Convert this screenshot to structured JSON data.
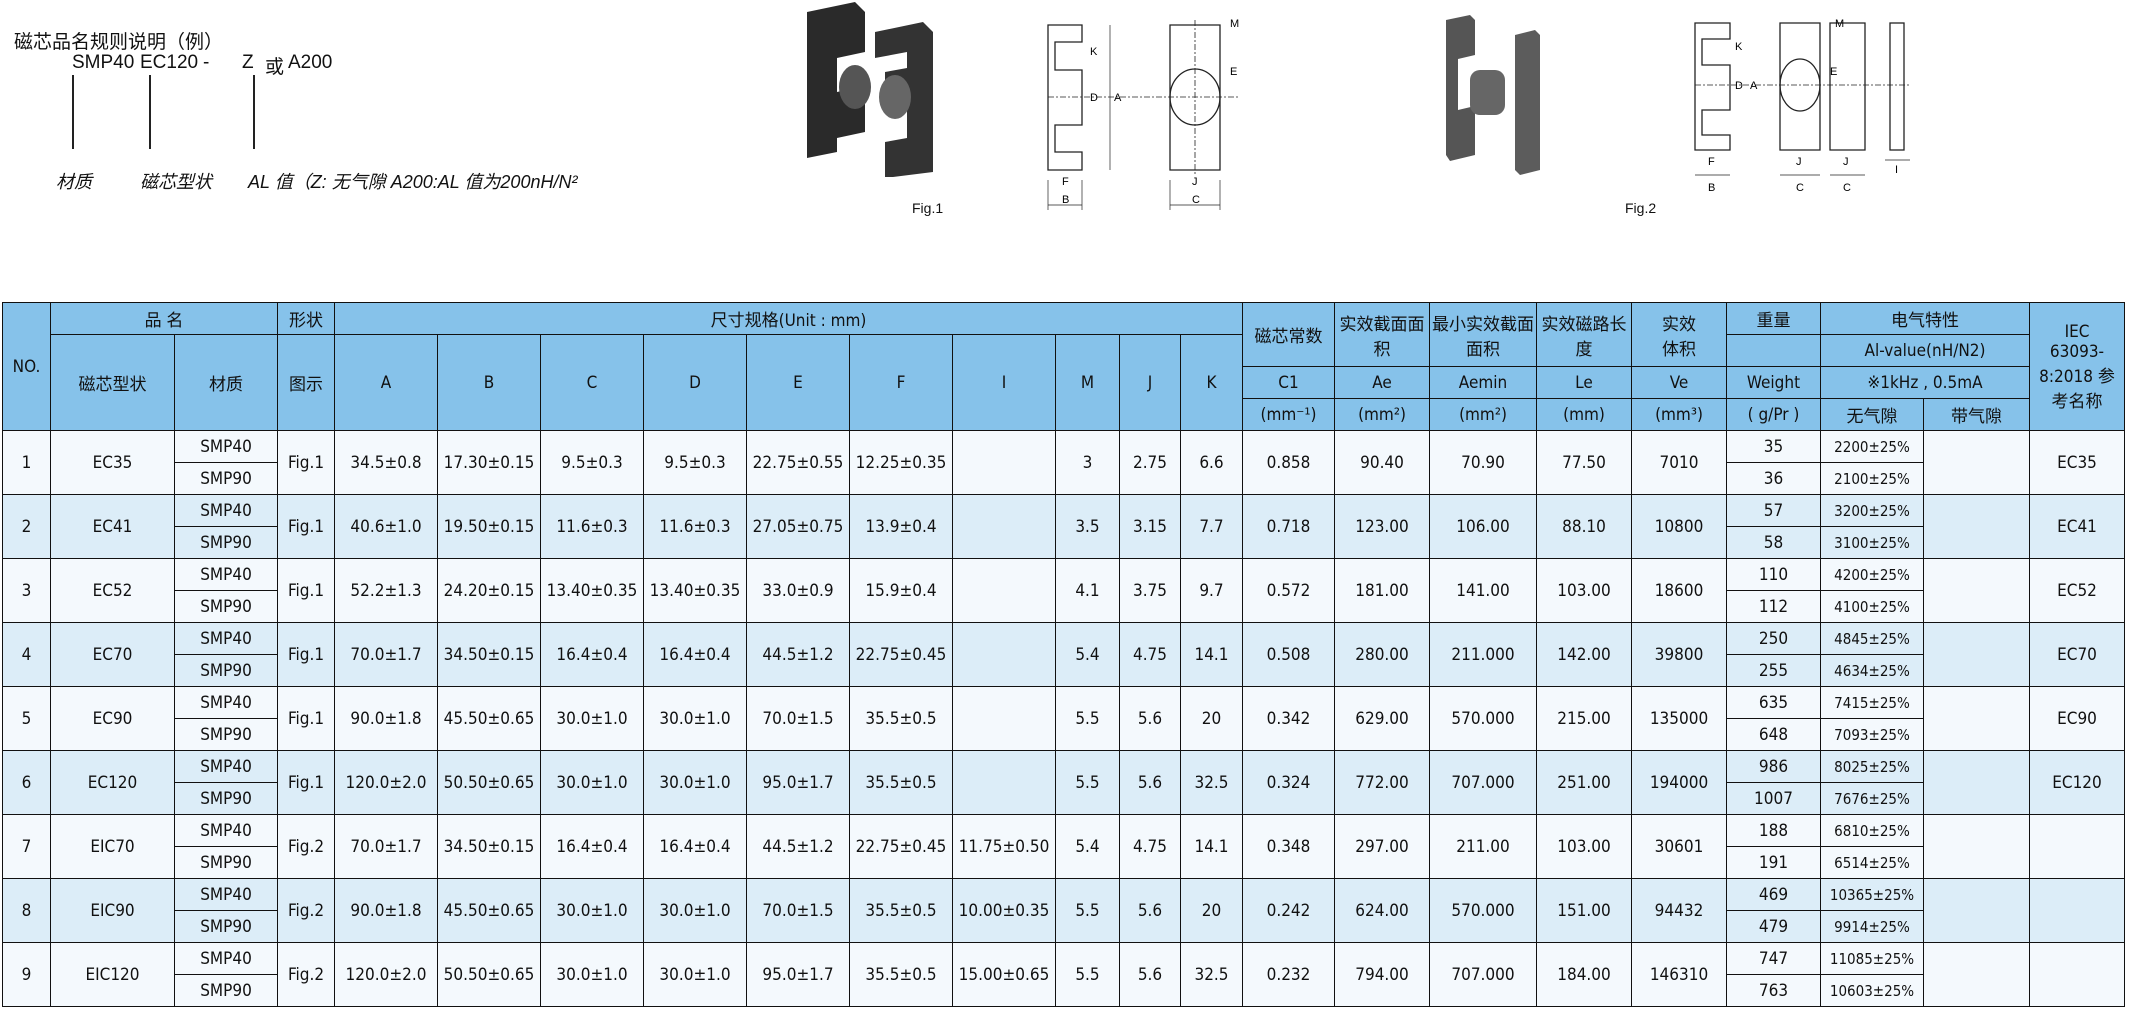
{
  "naming_rule": {
    "title": "磁芯品名规则说明（例）",
    "example_material": "SMP40",
    "example_shape": "EC120",
    "example_dash": "-",
    "example_al": "Z",
    "example_or": "或",
    "example_al_alt": "A200",
    "label_material": "材质",
    "label_shape": "磁芯型状",
    "label_al": "AL 值（Z: 无气隙  A200:AL 值为200nH/N²"
  },
  "figures": [
    {
      "label": "Fig.1",
      "dims": [
        "A",
        "B",
        "C",
        "D",
        "E",
        "F",
        "J",
        "K",
        "M"
      ]
    },
    {
      "label": "Fig.2",
      "dims": [
        "A",
        "B",
        "C",
        "D",
        "E",
        "F",
        "I",
        "J",
        "K",
        "M"
      ]
    }
  ],
  "header": {
    "no": "NO.",
    "product_name": "品 名",
    "shape": "形状",
    "dimensions": "尺寸规格(Unit : mm)",
    "core_shape": "磁芯型状",
    "material": "材质",
    "diagram": "图示",
    "dim_cols": [
      "A",
      "B",
      "C",
      "D",
      "E",
      "F",
      "I",
      "M",
      "J",
      "K"
    ],
    "c1_title": "磁芯常数",
    "c1": "C1",
    "c1_unit": "(mm⁻¹)",
    "ae_title": "实效截面面积",
    "ae": "Ae",
    "ae_unit": "(mm²)",
    "aemin_title": "最小实效截面面积",
    "aemin": "Aemin",
    "aemin_unit": "(mm²)",
    "le_title": "实效磁路长度",
    "le": "Le",
    "le_unit": "(mm)",
    "ve_title": "实效体积",
    "ve": "Ve",
    "ve_unit": "(mm³)",
    "weight_title": "重量",
    "weight": "Weight",
    "weight_unit": "( g/Pr )",
    "electrical": "电气特性",
    "al_value": "Al-value(nH/N2)",
    "condition": "※1kHz , 0.5mA",
    "no_gap": "无气隙",
    "with_gap": "带气隙",
    "iec": "IEC 63093-8:2018 参考名称"
  },
  "rows": [
    {
      "no": "1",
      "shape": "EC35",
      "materials": [
        "SMP40",
        "SMP90"
      ],
      "fig": "Fig.1",
      "dims": [
        "34.5±0.8",
        "17.30±0.15",
        "9.5±0.3",
        "9.5±0.3",
        "22.75±0.55",
        "12.25±0.35",
        "",
        "3",
        "2.75",
        "6.6"
      ],
      "c1": "0.858",
      "ae": "90.40",
      "aemin": "70.90",
      "le": "77.50",
      "ve": "7010",
      "weight": [
        "35",
        "36"
      ],
      "al": [
        "2200±25%",
        "2100±25%"
      ],
      "gap": "",
      "iec": "EC35"
    },
    {
      "no": "2",
      "shape": "EC41",
      "materials": [
        "SMP40",
        "SMP90"
      ],
      "fig": "Fig.1",
      "dims": [
        "40.6±1.0",
        "19.50±0.15",
        "11.6±0.3",
        "11.6±0.3",
        "27.05±0.75",
        "13.9±0.4",
        "",
        "3.5",
        "3.15",
        "7.7"
      ],
      "c1": "0.718",
      "ae": "123.00",
      "aemin": "106.00",
      "le": "88.10",
      "ve": "10800",
      "weight": [
        "57",
        "58"
      ],
      "al": [
        "3200±25%",
        "3100±25%"
      ],
      "gap": "",
      "iec": "EC41"
    },
    {
      "no": "3",
      "shape": "EC52",
      "materials": [
        "SMP40",
        "SMP90"
      ],
      "fig": "Fig.1",
      "dims": [
        "52.2±1.3",
        "24.20±0.15",
        "13.40±0.35",
        "13.40±0.35",
        "33.0±0.9",
        "15.9±0.4",
        "",
        "4.1",
        "3.75",
        "9.7"
      ],
      "c1": "0.572",
      "ae": "181.00",
      "aemin": "141.00",
      "le": "103.00",
      "ve": "18600",
      "weight": [
        "110",
        "112"
      ],
      "al": [
        "4200±25%",
        "4100±25%"
      ],
      "gap": "",
      "iec": "EC52"
    },
    {
      "no": "4",
      "shape": "EC70",
      "materials": [
        "SMP40",
        "SMP90"
      ],
      "fig": "Fig.1",
      "dims": [
        "70.0±1.7",
        "34.50±0.15",
        "16.4±0.4",
        "16.4±0.4",
        "44.5±1.2",
        "22.75±0.45",
        "",
        "5.4",
        "4.75",
        "14.1"
      ],
      "c1": "0.508",
      "ae": "280.00",
      "aemin": "211.000",
      "le": "142.00",
      "ve": "39800",
      "weight": [
        "250",
        "255"
      ],
      "al": [
        "4845±25%",
        "4634±25%"
      ],
      "gap": "",
      "iec": "EC70"
    },
    {
      "no": "5",
      "shape": "EC90",
      "materials": [
        "SMP40",
        "SMP90"
      ],
      "fig": "Fig.1",
      "dims": [
        "90.0±1.8",
        "45.50±0.65",
        "30.0±1.0",
        "30.0±1.0",
        "70.0±1.5",
        "35.5±0.5",
        "",
        "5.5",
        "5.6",
        "20"
      ],
      "c1": "0.342",
      "ae": "629.00",
      "aemin": "570.000",
      "le": "215.00",
      "ve": "135000",
      "weight": [
        "635",
        "648"
      ],
      "al": [
        "7415±25%",
        "7093±25%"
      ],
      "gap": "",
      "iec": "EC90"
    },
    {
      "no": "6",
      "shape": "EC120",
      "materials": [
        "SMP40",
        "SMP90"
      ],
      "fig": "Fig.1",
      "dims": [
        "120.0±2.0",
        "50.50±0.65",
        "30.0±1.0",
        "30.0±1.0",
        "95.0±1.7",
        "35.5±0.5",
        "",
        "5.5",
        "5.6",
        "32.5"
      ],
      "c1": "0.324",
      "ae": "772.00",
      "aemin": "707.000",
      "le": "251.00",
      "ve": "194000",
      "weight": [
        "986",
        "1007"
      ],
      "al": [
        "8025±25%",
        "7676±25%"
      ],
      "gap": "",
      "iec": "EC120"
    },
    {
      "no": "7",
      "shape": "EIC70",
      "materials": [
        "SMP40",
        "SMP90"
      ],
      "fig": "Fig.2",
      "dims": [
        "70.0±1.7",
        "34.50±0.15",
        "16.4±0.4",
        "16.4±0.4",
        "44.5±1.2",
        "22.75±0.45",
        "11.75±0.50",
        "5.4",
        "4.75",
        "14.1"
      ],
      "c1": "0.348",
      "ae": "297.00",
      "aemin": "211.00",
      "le": "103.00",
      "ve": "30601",
      "weight": [
        "188",
        "191"
      ],
      "al": [
        "6810±25%",
        "6514±25%"
      ],
      "gap": "",
      "iec": ""
    },
    {
      "no": "8",
      "shape": "EIC90",
      "materials": [
        "SMP40",
        "SMP90"
      ],
      "fig": "Fig.2",
      "dims": [
        "90.0±1.8",
        "45.50±0.65",
        "30.0±1.0",
        "30.0±1.0",
        "70.0±1.5",
        "35.5±0.5",
        "10.00±0.35",
        "5.5",
        "5.6",
        "20"
      ],
      "c1": "0.242",
      "ae": "624.00",
      "aemin": "570.000",
      "le": "151.00",
      "ve": "94432",
      "weight": [
        "469",
        "479"
      ],
      "al": [
        "10365±25%",
        "9914±25%"
      ],
      "gap": "",
      "iec": ""
    },
    {
      "no": "9",
      "shape": "EIC120",
      "materials": [
        "SMP40",
        "SMP90"
      ],
      "fig": "Fig.2",
      "dims": [
        "120.0±2.0",
        "50.50±0.65",
        "30.0±1.0",
        "30.0±1.0",
        "95.0±1.7",
        "35.5±0.5",
        "15.00±0.65",
        "5.5",
        "5.6",
        "32.5"
      ],
      "c1": "0.232",
      "ae": "794.00",
      "aemin": "707.000",
      "le": "184.00",
      "ve": "146310",
      "weight": [
        "747",
        "763"
      ],
      "al": [
        "11085±25%",
        "10603±25%"
      ],
      "gap": "",
      "iec": ""
    }
  ],
  "colors": {
    "header_bg": "#86c2ea",
    "row_odd": "#f4f9fd",
    "row_even": "#dcedf8",
    "border": "#111111"
  }
}
